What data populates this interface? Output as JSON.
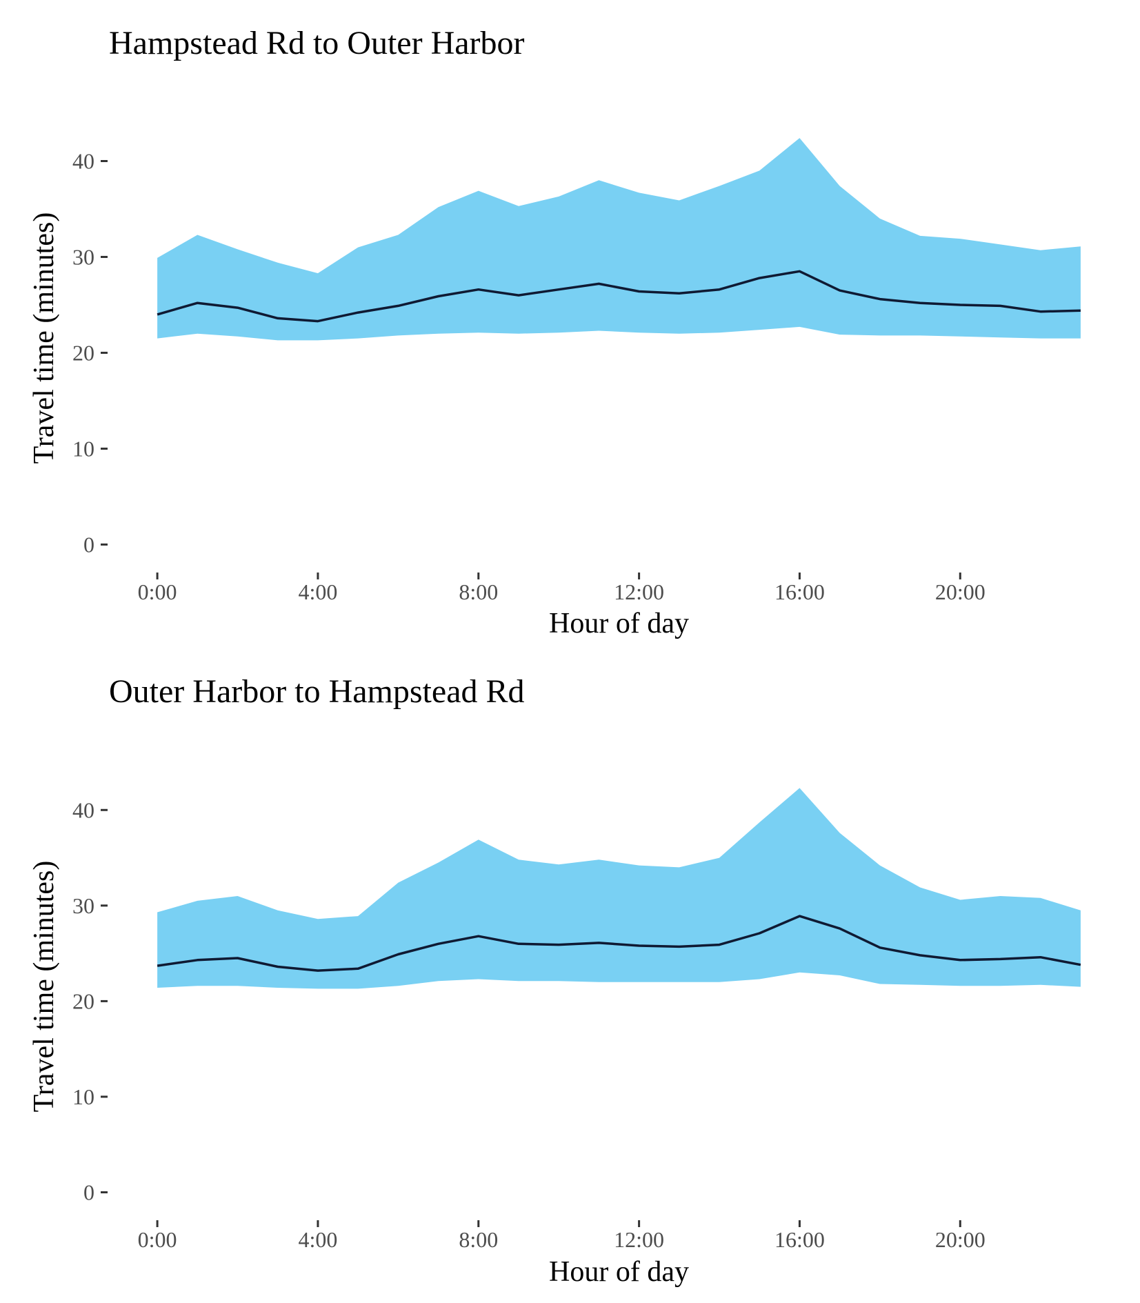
{
  "colors": {
    "band": "#79d0f3",
    "line": "#0f1a33",
    "text": "#000000",
    "tick_text": "#4d4d4d"
  },
  "chart_data": [
    {
      "type": "area",
      "title": "Hampstead Rd to Outer Harbor",
      "xlabel": "Hour of day",
      "ylabel": "Travel time (minutes)",
      "x": [
        0,
        1,
        2,
        3,
        4,
        5,
        6,
        7,
        8,
        9,
        10,
        11,
        12,
        13,
        14,
        15,
        16,
        17,
        18,
        19,
        20,
        21,
        22,
        23
      ],
      "x_ticks": [
        0,
        4,
        8,
        12,
        16,
        20
      ],
      "x_tick_labels": [
        "0:00",
        "4:00",
        "8:00",
        "12:00",
        "16:00",
        "20:00"
      ],
      "y_ticks": [
        0,
        10,
        20,
        30,
        40
      ],
      "y_tick_labels": [
        "0",
        "10",
        "20",
        "30",
        "40"
      ],
      "xlim": [
        -0.5,
        23.5
      ],
      "ylim": [
        -2.2,
        45
      ],
      "grid": false,
      "series": [
        {
          "role": "band-upper",
          "values": [
            29.9,
            32.3,
            30.8,
            29.4,
            28.3,
            31.0,
            32.3,
            35.2,
            36.9,
            35.3,
            36.3,
            38.0,
            36.7,
            35.9,
            37.4,
            39.0,
            42.4,
            37.4,
            34.0,
            32.2,
            31.9,
            31.3,
            30.7,
            31.1
          ]
        },
        {
          "role": "band-lower",
          "values": [
            21.5,
            22.0,
            21.7,
            21.3,
            21.3,
            21.5,
            21.8,
            22.0,
            22.1,
            22.0,
            22.1,
            22.3,
            22.1,
            22.0,
            22.1,
            22.4,
            22.7,
            21.9,
            21.8,
            21.8,
            21.7,
            21.6,
            21.5,
            21.5
          ]
        },
        {
          "role": "median",
          "values": [
            24.0,
            25.2,
            24.7,
            23.6,
            23.3,
            24.2,
            24.9,
            25.9,
            26.6,
            26.0,
            26.6,
            27.2,
            26.4,
            26.2,
            26.6,
            27.8,
            28.5,
            26.5,
            25.6,
            25.2,
            25.0,
            24.9,
            24.3,
            24.4
          ]
        }
      ]
    },
    {
      "type": "area",
      "title": "Outer Harbor to Hampstead Rd",
      "xlabel": "Hour of day",
      "ylabel": "Travel time (minutes)",
      "x": [
        0,
        1,
        2,
        3,
        4,
        5,
        6,
        7,
        8,
        9,
        10,
        11,
        12,
        13,
        14,
        15,
        16,
        17,
        18,
        19,
        20,
        21,
        22,
        23
      ],
      "x_ticks": [
        0,
        4,
        8,
        12,
        16,
        20
      ],
      "x_tick_labels": [
        "0:00",
        "4:00",
        "8:00",
        "12:00",
        "16:00",
        "20:00"
      ],
      "y_ticks": [
        0,
        10,
        20,
        30,
        40
      ],
      "y_tick_labels": [
        "0",
        "10",
        "20",
        "30",
        "40"
      ],
      "xlim": [
        -0.5,
        23.5
      ],
      "ylim": [
        -2.2,
        45
      ],
      "grid": false,
      "series": [
        {
          "role": "band-upper",
          "values": [
            29.3,
            30.5,
            31.0,
            29.5,
            28.6,
            28.9,
            32.4,
            34.5,
            36.9,
            34.8,
            34.3,
            34.8,
            34.2,
            34.0,
            35.0,
            38.7,
            42.3,
            37.6,
            34.2,
            31.9,
            30.6,
            31.0,
            30.8,
            29.5
          ]
        },
        {
          "role": "band-lower",
          "values": [
            21.4,
            21.6,
            21.6,
            21.4,
            21.3,
            21.3,
            21.6,
            22.1,
            22.3,
            22.1,
            22.1,
            22.0,
            22.0,
            22.0,
            22.0,
            22.3,
            23.0,
            22.7,
            21.8,
            21.7,
            21.6,
            21.6,
            21.7,
            21.5
          ]
        },
        {
          "role": "median",
          "values": [
            23.7,
            24.3,
            24.5,
            23.6,
            23.2,
            23.4,
            24.9,
            26.0,
            26.8,
            26.0,
            25.9,
            26.1,
            25.8,
            25.7,
            25.9,
            27.1,
            28.9,
            27.6,
            25.6,
            24.8,
            24.3,
            24.4,
            24.6,
            23.8
          ]
        }
      ]
    }
  ]
}
